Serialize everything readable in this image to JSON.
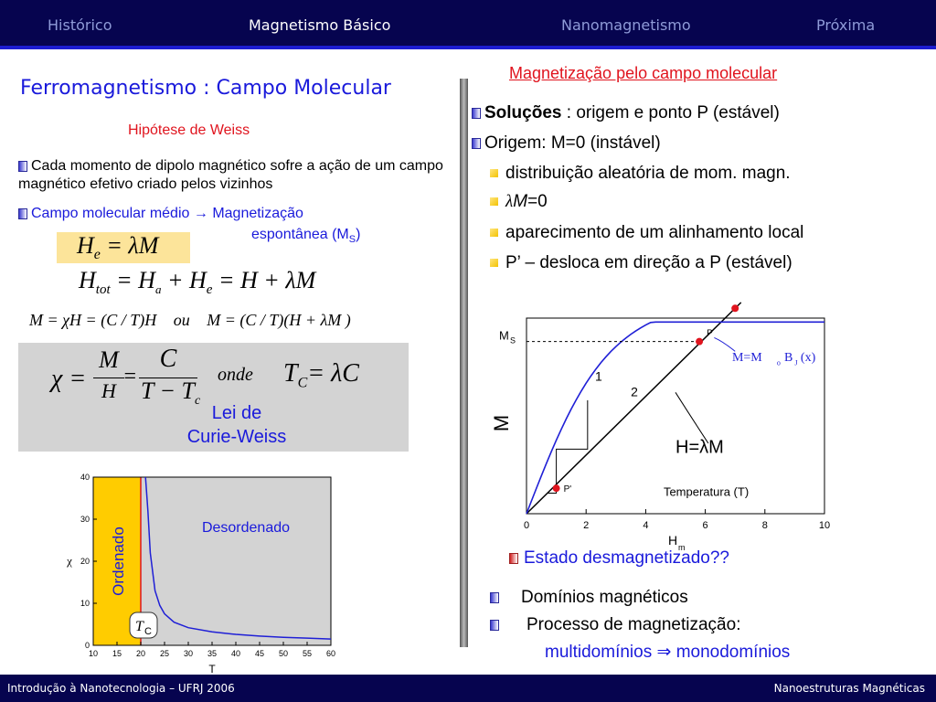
{
  "nav": {
    "tabs": [
      "Histórico",
      "Magnetismo Básico",
      "Nanomagnetismo",
      "Próxima"
    ],
    "active_index": 1,
    "bg_color": "#06044f",
    "inactive_color": "#8f9bd8",
    "active_color": "#ffffff"
  },
  "left": {
    "title": "Ferromagnetismo : Campo Molecular",
    "subtitle": "Hipótese de Weiss",
    "bullet1": "Cada momento de dipolo magnético sofre a ação de um campo magnético efetivo criado pelos vizinhos",
    "bullet2_a": "Campo molecular médio",
    "bullet2_arrow": "→",
    "bullet2_b": "Magnetização",
    "bullet2_c": "espontânea (M",
    "bullet2_sub": "S",
    "bullet2_d": ")",
    "law_line1": "Lei de",
    "law_line2": "Curie-Weiss"
  },
  "equations": {
    "eq1": {
      "H": "H",
      "e": "e",
      "rest": "= λM"
    },
    "eq2": {
      "H": "H",
      "tot": "tot",
      "mid1": "= H",
      "a": "a",
      "mid2": "+ H",
      "e": "e",
      "rest": "= H + λM"
    },
    "eq3": {
      "left": "M = χH = (C / T)H",
      "ou": "ou",
      "right": "M = (C / T)(H + λM )"
    },
    "eq4": {
      "chi": "χ =",
      "M": "M",
      "H": "H",
      "eqs": "=",
      "C": "C",
      "T": "T − T",
      "c": "c",
      "onde": "onde",
      "TC": "T",
      "Csub": "C",
      "rest": "= λC"
    }
  },
  "right": {
    "section_title": "Magnetização pelo campo molecular",
    "solucoes_bold": "Soluções",
    "solucoes_rest": " : origem e ponto P (estável)",
    "origem": "Origem: M=0 (instável)",
    "sub1": "distribuição aleatória de mom. magn.",
    "sub2_lambda": "λ",
    "sub2_M": "M",
    "sub2_rest": "=0",
    "sub3": "aparecimento de um alinhamento local",
    "sub4": "P’ – desloca em direção a P (estável)",
    "estado": "Estado desmagnetizado??",
    "dominios": "Domínios magnéticos",
    "processo": "Processo de magnetização:",
    "multi": "multidomínios ⇒ monodomínios"
  },
  "chi_chart": {
    "type": "line",
    "xlabel": "T",
    "ylabel": "χ",
    "xlim": [
      10,
      60
    ],
    "ylim": [
      0,
      40
    ],
    "xticks": [
      10,
      15,
      20,
      25,
      30,
      35,
      40,
      45,
      50,
      55,
      60
    ],
    "yticks": [
      0,
      10,
      20,
      30,
      40
    ],
    "tc": 20,
    "ordered_label": "Ordenado",
    "disordered_label": "Desordenado",
    "tc_label": "T",
    "tc_sub": "C",
    "curve": {
      "T": [
        21,
        21.5,
        22,
        23,
        24,
        25,
        27,
        30,
        35,
        40,
        45,
        50,
        55,
        60
      ],
      "chi": [
        40,
        32,
        22,
        13,
        9.5,
        7.5,
        5.5,
        4.2,
        3.2,
        2.6,
        2.2,
        1.9,
        1.7,
        1.5
      ]
    }
  },
  "mag_chart": {
    "type": "line",
    "xlabel": "H",
    "xlabel_sub": "m",
    "ylabel": "M",
    "xlim": [
      0,
      10
    ],
    "xticks": [
      0,
      2,
      4,
      6,
      8,
      10
    ],
    "ms_label": "M",
    "ms_sub": "S",
    "temp_label": "Temperatura (T)",
    "line_label": "H=λM",
    "curve_label": "M=M",
    "curve_label_b": "B",
    "curve_label_sub0": "o",
    "curve_label_subJ": "J",
    "curve_label_x": "(x)",
    "label_1": "1",
    "label_2": "2",
    "p_label": "P",
    "p2_label": "P''",
    "p1_label": "P'",
    "points": {
      "P": [
        5.8,
        0.88
      ],
      "P2": [
        7.0,
        1.05
      ],
      "P1": [
        1.0,
        0.13
      ]
    }
  },
  "footer": {
    "left": "Introdução à Nanotecnologia – UFRJ 2006",
    "right": "Nanoestruturas Magnéticas"
  },
  "colors": {
    "blue_text": "#1a1adb",
    "red_text": "#e0141e",
    "grey_box": "#d3d3d3",
    "eq_highlight": "#fce49a",
    "ordered_fill": "#ffcc00",
    "curve_blue": "#1f1fd6"
  }
}
